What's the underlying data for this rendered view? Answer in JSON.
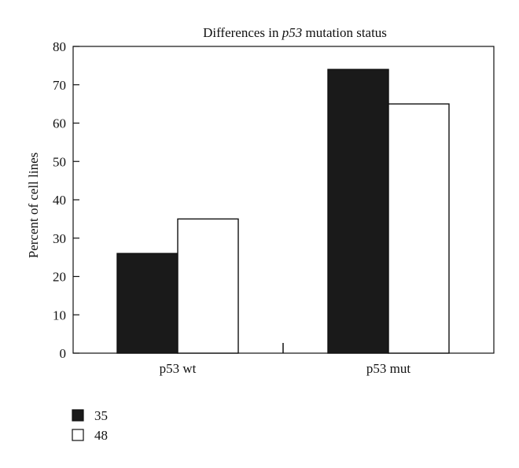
{
  "chart_data": {
    "type": "bar",
    "title": {
      "prefix": "Differences in ",
      "italic": "p53",
      "suffix": " mutation status"
    },
    "categories": [
      "p53 wt",
      "p53 mut"
    ],
    "series": [
      {
        "name": "35",
        "values": [
          26,
          74
        ],
        "color": "#1a1a1a"
      },
      {
        "name": "48",
        "values": [
          35,
          65
        ],
        "color": "#ffffff"
      }
    ],
    "xlabel": "",
    "ylabel": "Percent of cell lines",
    "ylim": [
      0,
      80
    ],
    "yticks": [
      0,
      10,
      20,
      30,
      40,
      50,
      60,
      70,
      80
    ],
    "grid": false,
    "legend_position": "bottom-left"
  }
}
